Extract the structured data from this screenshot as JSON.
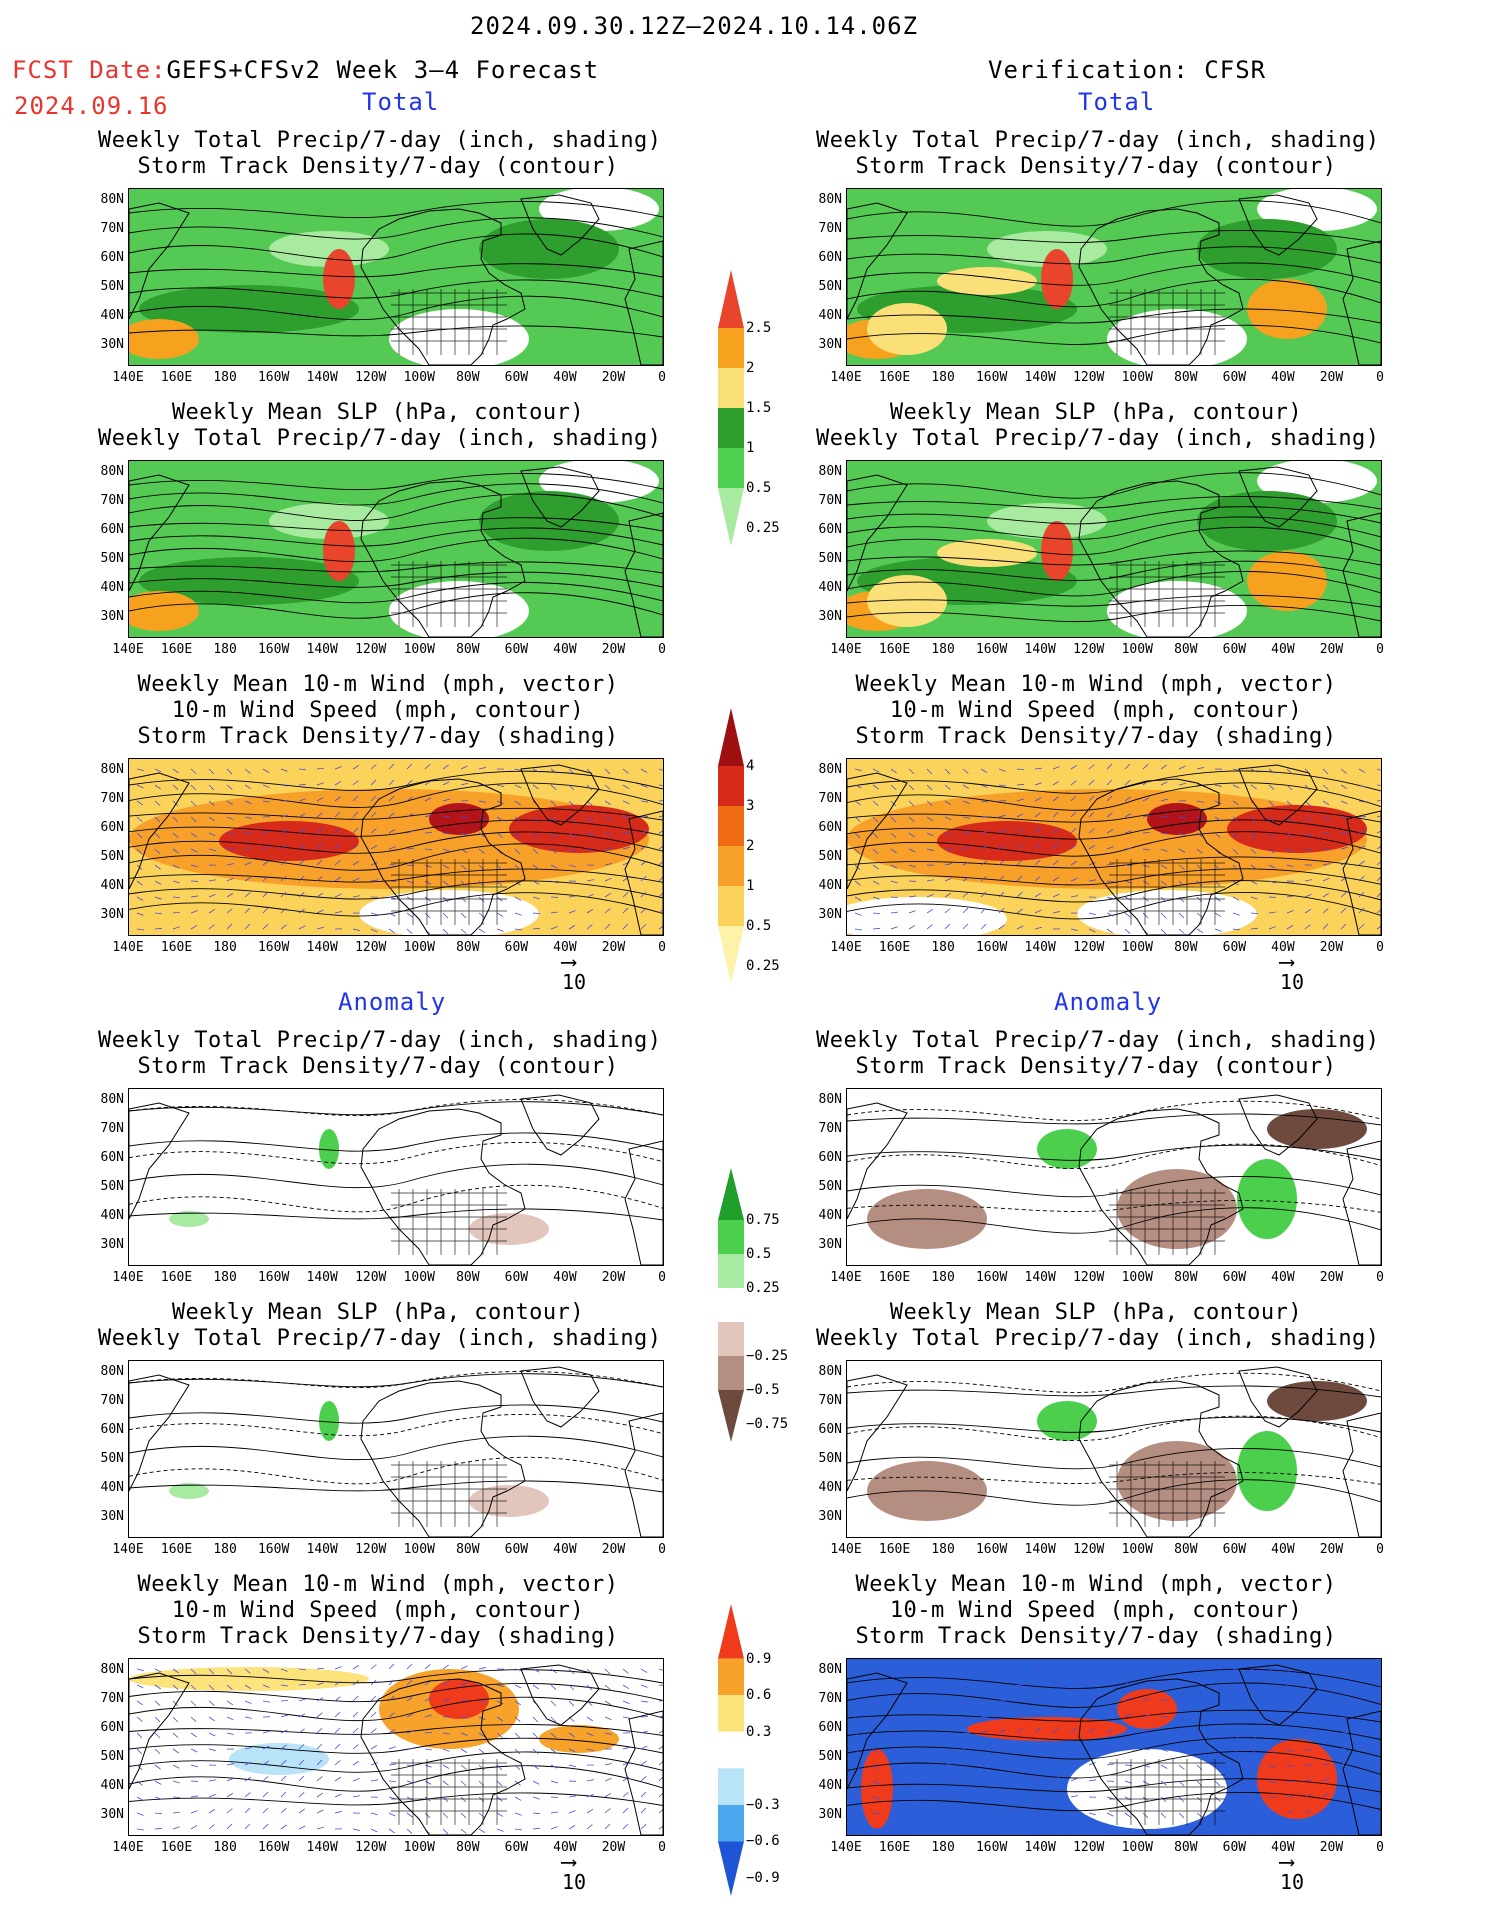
{
  "header": {
    "period": "2024.09.30.12Z–2024.10.14.06Z",
    "fcst_label": "FCST Date:",
    "fcst_model": "GEFS+CFSv2 Week 3–4 Forecast",
    "fcst_date": "2024.09.16",
    "verification": "Verification: CFSR"
  },
  "sections": {
    "total_left": "Total",
    "total_right": "Total",
    "anomaly_left": "Anomaly",
    "anomaly_right": "Anomaly"
  },
  "titles": {
    "precip": [
      "Weekly Total Precip/7-day (inch, shading)",
      "Storm Track Density/7-day (contour)"
    ],
    "slp": [
      "Weekly Mean SLP (hPa, contour)",
      "Weekly Total Precip/7-day (inch, shading)"
    ],
    "wind": [
      "Weekly Mean 10-m Wind (mph, vector)",
      "10-m Wind Speed (mph, contour)",
      "Storm Track Density/7-day (shading)"
    ]
  },
  "axes": {
    "lat_labels": [
      "80N",
      "70N",
      "60N",
      "50N",
      "40N",
      "30N"
    ],
    "lon_labels": [
      "140E",
      "160E",
      "180",
      "160W",
      "140W",
      "120W",
      "100W",
      "80W",
      "60W",
      "40W",
      "20W",
      "0"
    ]
  },
  "vector_reference": "10",
  "colorbars": {
    "total_precip": {
      "labels": [
        "2.5",
        "2",
        "1.5",
        "1",
        "0.5",
        "0.25"
      ],
      "colors": [
        "#e8452c",
        "#f6a21e",
        "#fbe07a",
        "#2e9e2e",
        "#4fcf4f",
        "#a8eaa0"
      ]
    },
    "total_storm": {
      "labels": [
        "4",
        "3",
        "2",
        "1",
        "0.5",
        "0.25"
      ],
      "colors": [
        "#9e1010",
        "#d62a1a",
        "#f06a12",
        "#f7a02a",
        "#fbd35a",
        "#fdf3a8"
      ]
    },
    "anom_precip": {
      "labels": [
        "0.75",
        "0.5",
        "0.25",
        "−0.25",
        "−0.5",
        "−0.75"
      ],
      "colors": [
        "#1f9e2a",
        "#4ccf4c",
        "#a7eaa2",
        "#ffffff",
        "#e2c6bc",
        "#b58e82",
        "#6e4a3e"
      ]
    },
    "anom_storm": {
      "labels": [
        "0.9",
        "0.6",
        "0.3",
        "−0.3",
        "−0.6",
        "−0.9"
      ],
      "colors": [
        "#ef3b1b",
        "#f7a22a",
        "#fde37c",
        "#ffffff",
        "#b9e4f7",
        "#4aa8ee",
        "#1e55d6"
      ]
    }
  },
  "map_fills": {
    "total_precip_land": "#54c954",
    "total_precip_dark": "#2e9e2e",
    "total_precip_light": "#a8eaa0",
    "total_storm_base": "#f7a02a",
    "total_storm_core": "#b3141a",
    "anom_base": "#ffffff",
    "anom_storm_blue": "#2b5fd9",
    "anom_storm_red": "#ef3b1b"
  }
}
